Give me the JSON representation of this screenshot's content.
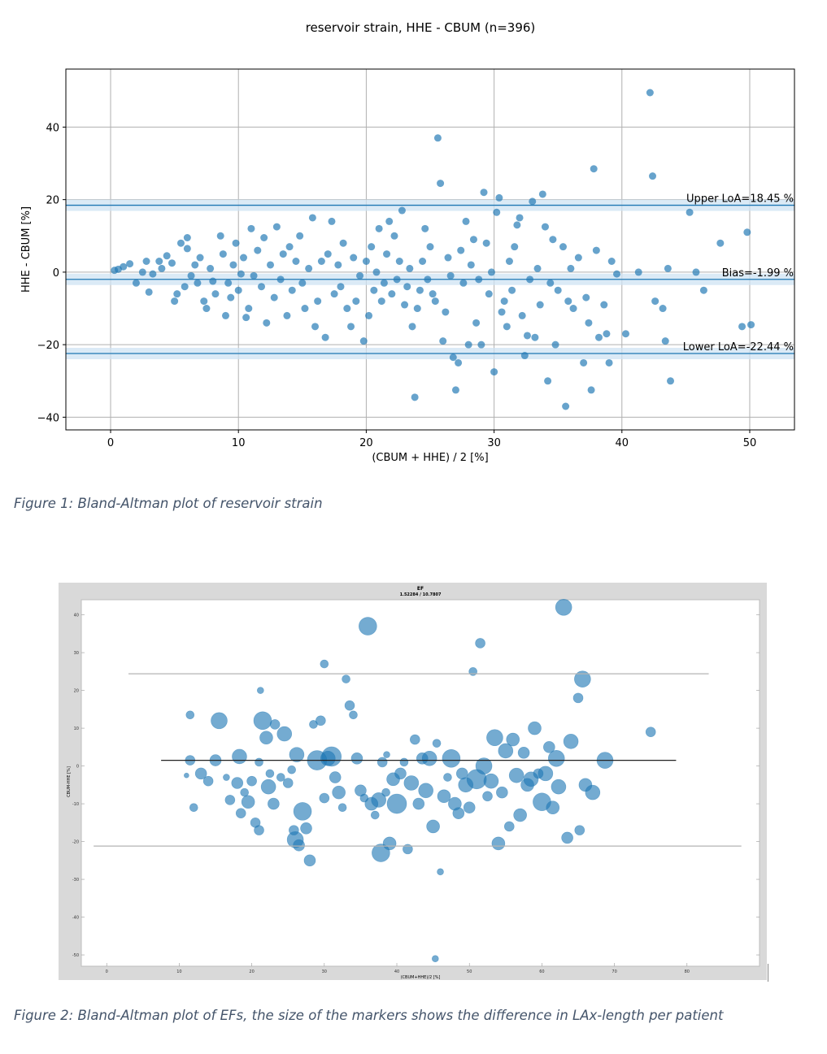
{
  "figure1": {
    "chart_data": {
      "type": "scatter",
      "title": "reservoir strain, HHE - CBUM (n=396)",
      "xlabel": "(CBUM + HHE) / 2 [%]",
      "ylabel": "HHE - CBUM [%]",
      "xlim": [
        -3.5,
        53.5
      ],
      "ylim": [
        -43.5,
        56
      ],
      "xticks": [
        0,
        10,
        20,
        30,
        40,
        50
      ],
      "yticks": [
        -40,
        -20,
        0,
        20,
        40
      ],
      "grid": true,
      "marker_color": "#1f77b4",
      "lines": [
        {
          "label": "Upper LoA=18.45 %",
          "y": 18.45
        },
        {
          "label": "Bias=-1.99 %",
          "y": -1.99
        },
        {
          "label": "Lower LoA=-22.44 %",
          "y": -22.44
        }
      ],
      "points": [
        [
          0.3,
          0.5
        ],
        [
          0.6,
          0.8
        ],
        [
          1,
          1.5
        ],
        [
          1.5,
          2.3
        ],
        [
          2,
          -3
        ],
        [
          2.5,
          0
        ],
        [
          2.8,
          3
        ],
        [
          3,
          -5.5
        ],
        [
          3.3,
          -0.5
        ],
        [
          3.8,
          3
        ],
        [
          4,
          1
        ],
        [
          4.4,
          4.5
        ],
        [
          4.8,
          2.5
        ],
        [
          5,
          -8
        ],
        [
          5.2,
          -6
        ],
        [
          5.5,
          8
        ],
        [
          5.8,
          -4
        ],
        [
          6,
          6.5
        ],
        [
          6,
          9.5
        ],
        [
          6.3,
          -1
        ],
        [
          6.6,
          2
        ],
        [
          6.8,
          -3
        ],
        [
          7,
          4
        ],
        [
          7.3,
          -8
        ],
        [
          7.5,
          -10
        ],
        [
          7.8,
          1
        ],
        [
          8,
          -2.5
        ],
        [
          8.2,
          -6
        ],
        [
          8.6,
          10
        ],
        [
          8.8,
          5
        ],
        [
          9,
          -12
        ],
        [
          9.2,
          -3
        ],
        [
          9.4,
          -7
        ],
        [
          9.6,
          2
        ],
        [
          9.8,
          8
        ],
        [
          10,
          -5
        ],
        [
          10.2,
          -0.5
        ],
        [
          10.4,
          4
        ],
        [
          10.6,
          -12.5
        ],
        [
          10.8,
          -10
        ],
        [
          11,
          12
        ],
        [
          11.2,
          -1
        ],
        [
          11.5,
          6
        ],
        [
          11.8,
          -4
        ],
        [
          12,
          9.5
        ],
        [
          12.2,
          -14
        ],
        [
          12.5,
          2
        ],
        [
          12.8,
          -7
        ],
        [
          13,
          12.5
        ],
        [
          13.3,
          -2
        ],
        [
          13.5,
          5
        ],
        [
          13.8,
          -12
        ],
        [
          14,
          7
        ],
        [
          14.2,
          -5
        ],
        [
          14.5,
          3
        ],
        [
          14.8,
          10
        ],
        [
          15,
          -3
        ],
        [
          15.2,
          -10
        ],
        [
          15.5,
          1
        ],
        [
          15.8,
          15
        ],
        [
          16,
          -15
        ],
        [
          16.2,
          -8
        ],
        [
          16.5,
          3
        ],
        [
          16.8,
          -18
        ],
        [
          17,
          5
        ],
        [
          17.3,
          14
        ],
        [
          17.5,
          -6
        ],
        [
          17.8,
          2
        ],
        [
          18,
          -4
        ],
        [
          18.2,
          8
        ],
        [
          18.5,
          -10
        ],
        [
          18.8,
          -15
        ],
        [
          19,
          4
        ],
        [
          19.2,
          -8
        ],
        [
          19.5,
          -1
        ],
        [
          19.8,
          -19
        ],
        [
          20,
          3
        ],
        [
          20.2,
          -12
        ],
        [
          20.4,
          7
        ],
        [
          20.6,
          -5
        ],
        [
          20.8,
          0
        ],
        [
          21,
          12
        ],
        [
          21.2,
          -8
        ],
        [
          21.4,
          -3
        ],
        [
          21.6,
          5
        ],
        [
          21.8,
          14
        ],
        [
          22,
          -6
        ],
        [
          22.2,
          10
        ],
        [
          22.4,
          -2
        ],
        [
          22.6,
          3
        ],
        [
          22.8,
          17
        ],
        [
          23,
          -9
        ],
        [
          23.2,
          -4
        ],
        [
          23.4,
          1
        ],
        [
          23.6,
          -15
        ],
        [
          23.8,
          -34.5
        ],
        [
          24,
          -10
        ],
        [
          24.2,
          -5
        ],
        [
          24.4,
          3
        ],
        [
          24.6,
          12
        ],
        [
          24.8,
          -2
        ],
        [
          25,
          7
        ],
        [
          25.2,
          -6
        ],
        [
          25.4,
          -8
        ],
        [
          25.6,
          37
        ],
        [
          25.8,
          24.5
        ],
        [
          26,
          -19
        ],
        [
          26.2,
          -11
        ],
        [
          26.4,
          4
        ],
        [
          26.6,
          -1
        ],
        [
          26.8,
          -23.5
        ],
        [
          27,
          -32.5
        ],
        [
          27.2,
          -25
        ],
        [
          27.4,
          6
        ],
        [
          27.6,
          -3
        ],
        [
          27.8,
          14
        ],
        [
          28,
          -20
        ],
        [
          28.2,
          2
        ],
        [
          28.4,
          9
        ],
        [
          28.6,
          -14
        ],
        [
          28.8,
          -2
        ],
        [
          29,
          -20
        ],
        [
          29.2,
          22
        ],
        [
          29.4,
          8
        ],
        [
          29.6,
          -6
        ],
        [
          29.8,
          0
        ],
        [
          30,
          -27.5
        ],
        [
          30.2,
          16.5
        ],
        [
          30.4,
          20.5
        ],
        [
          30.6,
          -11
        ],
        [
          30.8,
          -8
        ],
        [
          31,
          -15
        ],
        [
          31.2,
          3
        ],
        [
          31.4,
          -5
        ],
        [
          31.6,
          7
        ],
        [
          31.8,
          13
        ],
        [
          32,
          15
        ],
        [
          32.2,
          -12
        ],
        [
          32.4,
          -23
        ],
        [
          32.6,
          -17.5
        ],
        [
          32.8,
          -2
        ],
        [
          33,
          19.5
        ],
        [
          33.2,
          -18
        ],
        [
          33.4,
          1
        ],
        [
          33.6,
          -9
        ],
        [
          33.8,
          21.5
        ],
        [
          34,
          12.5
        ],
        [
          34.2,
          -30
        ],
        [
          34.4,
          -3
        ],
        [
          34.6,
          9
        ],
        [
          34.8,
          -20
        ],
        [
          35,
          -5
        ],
        [
          35.4,
          7
        ],
        [
          35.6,
          -37
        ],
        [
          35.8,
          -8
        ],
        [
          36,
          1
        ],
        [
          36.2,
          -10
        ],
        [
          36.6,
          4
        ],
        [
          37,
          -25
        ],
        [
          37.2,
          -7
        ],
        [
          37.4,
          -14
        ],
        [
          37.6,
          -32.5
        ],
        [
          37.8,
          28.5
        ],
        [
          38,
          6
        ],
        [
          38.2,
          -18
        ],
        [
          38.6,
          -9
        ],
        [
          38.8,
          -17
        ],
        [
          39,
          -25
        ],
        [
          39.2,
          3
        ],
        [
          39.6,
          -0.5
        ],
        [
          40.3,
          -17
        ],
        [
          41.3,
          0
        ],
        [
          42.2,
          49.5
        ],
        [
          42.4,
          26.5
        ],
        [
          42.6,
          -8
        ],
        [
          43.2,
          -10
        ],
        [
          43.4,
          -19
        ],
        [
          43.6,
          1
        ],
        [
          43.8,
          -30
        ],
        [
          45.3,
          16.5
        ],
        [
          45.8,
          0
        ],
        [
          46.4,
          -5
        ],
        [
          47.7,
          8
        ],
        [
          49.4,
          -15
        ],
        [
          49.8,
          11
        ],
        [
          50.1,
          -14.5
        ]
      ]
    }
  },
  "figure2": {
    "chart_data": {
      "type": "scatter",
      "title": "EF",
      "subtitle": "1.52284 / 10.7807",
      "xlabel": "(CBUM+HHE)/2 [%]",
      "ylabel": "CBUM-HHE [%]",
      "xlim": [
        -3.5,
        90
      ],
      "ylim": [
        -53,
        44
      ],
      "xticks": [
        0,
        10,
        20,
        30,
        40,
        50,
        60,
        70,
        80
      ],
      "yticks": [
        -50,
        -40,
        -30,
        -20,
        -10,
        0,
        10,
        20,
        30,
        40
      ],
      "grid": false,
      "marker_color": "#1f77b4",
      "marker_size_meaning": "difference in LAx-length per patient",
      "lines": [
        {
          "y": 24.4,
          "x0": 3,
          "x1": 83,
          "color": "#b4b4b4"
        },
        {
          "y": 1.5,
          "x0": 7.5,
          "x1": 78.5,
          "color": "#222222"
        },
        {
          "y": -21.2,
          "x0": -1.8,
          "x1": 87.5,
          "color": "#b4b4b4"
        }
      ],
      "points": [
        [
          11.5,
          13.5,
          5
        ],
        [
          11.5,
          1.5,
          6
        ],
        [
          11,
          -2.5,
          3
        ],
        [
          12,
          -11,
          5
        ],
        [
          13,
          -2,
          7
        ],
        [
          14,
          -4,
          6
        ],
        [
          15,
          1.5,
          7
        ],
        [
          15.5,
          12,
          10
        ],
        [
          16.5,
          -3,
          4
        ],
        [
          17,
          -9,
          6
        ],
        [
          18,
          -4.5,
          7
        ],
        [
          18.3,
          2.5,
          9
        ],
        [
          18.5,
          -12.5,
          6
        ],
        [
          19,
          -7,
          5
        ],
        [
          19.5,
          -9.5,
          8
        ],
        [
          20,
          -4,
          6
        ],
        [
          20.5,
          -15,
          6
        ],
        [
          21,
          -17,
          6
        ],
        [
          21,
          1,
          5
        ],
        [
          21.2,
          20,
          4
        ],
        [
          21.5,
          12,
          11
        ],
        [
          22,
          7.5,
          8
        ],
        [
          22.3,
          -5.5,
          9
        ],
        [
          22.5,
          -2,
          5
        ],
        [
          23,
          -10,
          7
        ],
        [
          23.2,
          11,
          6
        ],
        [
          24,
          -3,
          5
        ],
        [
          24.5,
          8.5,
          9
        ],
        [
          25,
          -4.5,
          6
        ],
        [
          25.5,
          -1,
          5
        ],
        [
          25.8,
          -17,
          6
        ],
        [
          26,
          -19.5,
          10
        ],
        [
          26.2,
          3,
          9
        ],
        [
          26.5,
          -21,
          7
        ],
        [
          27,
          -12,
          11
        ],
        [
          27.5,
          -16.5,
          7
        ],
        [
          28,
          -25,
          7
        ],
        [
          28.5,
          11,
          5
        ],
        [
          29,
          1.5,
          12
        ],
        [
          29.5,
          12,
          6
        ],
        [
          30,
          -8.5,
          6
        ],
        [
          30,
          27,
          5
        ],
        [
          30.5,
          2,
          9
        ],
        [
          31,
          2.5,
          12
        ],
        [
          31.5,
          -3,
          7
        ],
        [
          32,
          -7,
          8
        ],
        [
          32.5,
          -11,
          5
        ],
        [
          33,
          23,
          5
        ],
        [
          33.5,
          16,
          6
        ],
        [
          34,
          13.5,
          5
        ],
        [
          34.5,
          2,
          7
        ],
        [
          35,
          -6.5,
          7
        ],
        [
          35.5,
          -8.5,
          5
        ],
        [
          36,
          37,
          11
        ],
        [
          36.5,
          -10,
          8
        ],
        [
          37,
          -13,
          5
        ],
        [
          37.5,
          -9,
          9
        ],
        [
          37.8,
          -23,
          11
        ],
        [
          38,
          1,
          6
        ],
        [
          38.5,
          -7,
          5
        ],
        [
          38.6,
          3,
          4
        ],
        [
          39,
          -20.5,
          8
        ],
        [
          39.5,
          -3.5,
          8
        ],
        [
          40,
          -10,
          12
        ],
        [
          40.5,
          -2,
          7
        ],
        [
          41,
          1,
          5
        ],
        [
          41.5,
          -22,
          6
        ],
        [
          42,
          -4.5,
          9
        ],
        [
          42.5,
          7,
          6
        ],
        [
          43,
          -10,
          7
        ],
        [
          43.5,
          2,
          7
        ],
        [
          44,
          -6.5,
          9
        ],
        [
          44.5,
          2,
          9
        ],
        [
          45,
          -16,
          8
        ],
        [
          45.3,
          -51,
          4
        ],
        [
          45.5,
          6,
          5
        ],
        [
          46,
          -28,
          4
        ],
        [
          46.5,
          -8,
          8
        ],
        [
          47,
          -3,
          5
        ],
        [
          47.5,
          2,
          11
        ],
        [
          48,
          -10,
          8
        ],
        [
          48.5,
          -12.5,
          7
        ],
        [
          49,
          -2,
          7
        ],
        [
          49.5,
          -5,
          9
        ],
        [
          50,
          -11,
          7
        ],
        [
          50.5,
          25,
          5
        ],
        [
          51,
          -3.5,
          12
        ],
        [
          51.5,
          32.5,
          6
        ],
        [
          52,
          0,
          10
        ],
        [
          52.5,
          -8,
          6
        ],
        [
          53,
          -4,
          9
        ],
        [
          53.5,
          7.5,
          10
        ],
        [
          54,
          -20.5,
          8
        ],
        [
          54.5,
          -7,
          7
        ],
        [
          55,
          4,
          9
        ],
        [
          55.5,
          -16,
          6
        ],
        [
          56,
          7,
          8
        ],
        [
          56.5,
          -2.5,
          9
        ],
        [
          57,
          -13,
          8
        ],
        [
          57.5,
          3.5,
          7
        ],
        [
          58,
          -5,
          8
        ],
        [
          58.5,
          -3.5,
          9
        ],
        [
          59,
          10,
          8
        ],
        [
          59.5,
          -2,
          6
        ],
        [
          60,
          -9.5,
          11
        ],
        [
          60.5,
          -2,
          9
        ],
        [
          61,
          5,
          7
        ],
        [
          61.5,
          -11,
          8
        ],
        [
          62,
          2,
          10
        ],
        [
          62.3,
          -5.5,
          9
        ],
        [
          63,
          42,
          10
        ],
        [
          63.5,
          -19,
          7
        ],
        [
          64,
          6.5,
          9
        ],
        [
          65,
          18,
          6
        ],
        [
          65.2,
          -17,
          6
        ],
        [
          65.6,
          23,
          10
        ],
        [
          66,
          -5,
          8
        ],
        [
          67,
          -7,
          9
        ],
        [
          68.7,
          1.5,
          10
        ],
        [
          75,
          9,
          6
        ]
      ]
    }
  },
  "captions": {
    "fig1": "Figure 1: Bland-Altman plot of reservoir strain",
    "fig2": "Figure 2: Bland-Altman plot of EFs, the size of the markers shows the difference in LAx-length per patient"
  }
}
